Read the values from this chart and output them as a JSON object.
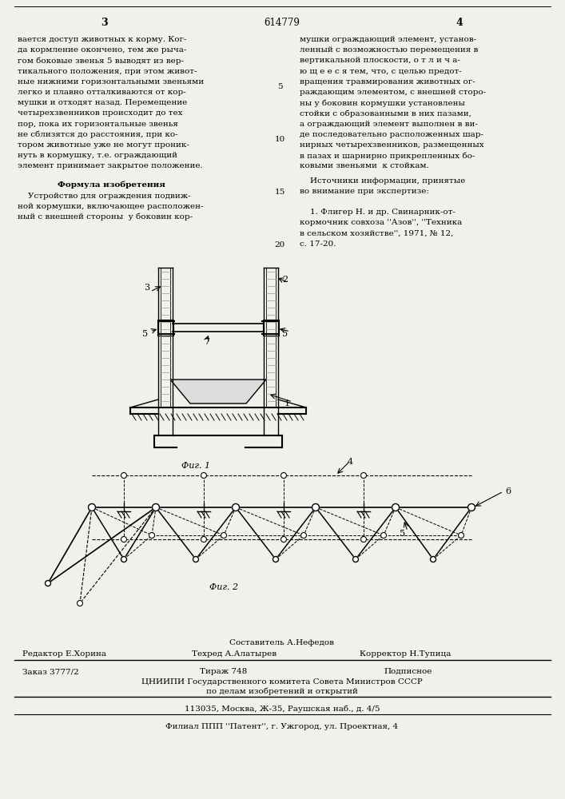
{
  "bg_color": "#f2f0eb",
  "page_num_left": "3",
  "page_num_center": "614779",
  "page_num_right": "4",
  "col1_text": [
    "вается доступ животных к корму. Ког-",
    "да кормление окончено, тем же рыча-",
    "гом боковые звенья 5 выводят из вер-",
    "тикального положения, при этом живот-",
    "ные нижними горизонтальными звеньями",
    "легко и плавно отталкиваются от кор-",
    "мушки и отходят назад. Перемещение",
    "четырехзвенников происходит до тех",
    "пор, пока их горизонтальные звенья",
    "не сблизятся до расстояния, при ко-",
    "тором животные уже не могут проник-",
    "нуть в кормушку, т.е. ограждающий",
    "элемент принимает закрытое положение."
  ],
  "col2_text": [
    "мушки ограждающий элемент, установ-",
    "ленный с возможностью перемещения в",
    "вертикальной плоскости, о т л и ч а-",
    "ю щ е е с я тем, что, с целью предот-",
    "вращения травмирования животных ог-",
    "раждающим элементом, с внешней сторо-",
    "ны у боковин кормушки установлены",
    "стойки с образованными в них пазами,",
    "а ограждающий элемент выполнен в ви-",
    "де последовательно расположенных шар-",
    "нирных четырехзвенников, размещенных",
    "в пазах и шарнирно прикрепленных бо-",
    "ковыми звеньями  к стойкам."
  ],
  "formula_header": "Формула изобретения",
  "formula_text": [
    "    Устройство для ограждения подвиж-",
    "ной кормушки, включающее расположен-",
    "ный с внешней стороны  у боковин кор-"
  ],
  "sources_header": "    Источники информации, принятые",
  "sources_text": [
    "во внимание при экспертизе:",
    "",
    "    1. Флигер Н. и др. Свинарник-от-",
    "кормочник совхоза ''Азов'', ''Техника",
    "в сельском хозяйстве'', 1971, № 12,",
    "с. 17-20."
  ],
  "line_numbers": [
    5,
    10,
    15,
    20
  ],
  "fig1_label": "Фиг. 1",
  "fig2_label": "Фиг. 2",
  "footer_composer": "Составитель А.Нефедов",
  "footer_editor": "Редактор Е.Хорина",
  "footer_techred": "Техред А.Алатырев",
  "footer_corrector": "Корректор Н.Тупица",
  "footer_order": "Заказ 3777/2",
  "footer_circulation": "Тираж 748",
  "footer_subscription": "Подписное",
  "footer_org1": "ЦНИИПИ Государственного комитета Совета Министров СССР",
  "footer_org2": "по делам изобретений и открытий",
  "footer_address": "113035, Москва, Ж-35, Раушская наб., д. 4/5",
  "footer_branch": "Филиал ППП ''Патент'', г. Ужгород, ул. Проектная, 4"
}
